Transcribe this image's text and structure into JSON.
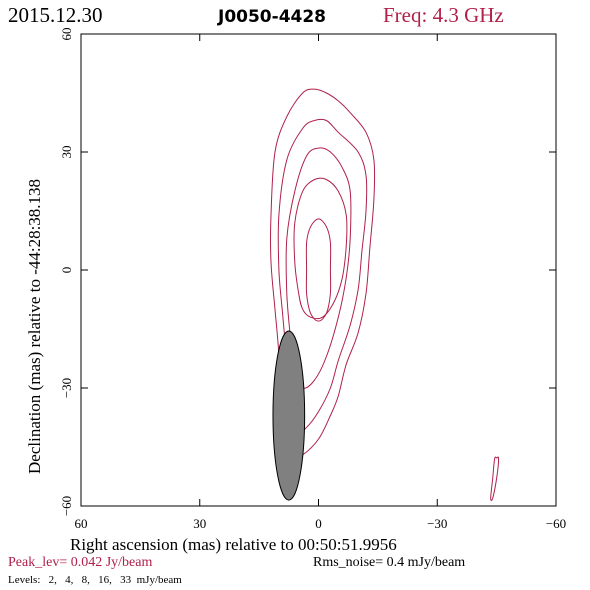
{
  "header": {
    "date": "2015.12.30",
    "source": "J0050-4428",
    "freq": "Freq: 4.3 GHz"
  },
  "footer": {
    "peak": "Peak_lev=  0.042 Jy/beam",
    "rms": "Rms_noise=  0.4 mJy/beam",
    "levels": "Levels:   2,   4,   8,   16,   33  mJy/beam"
  },
  "colors": {
    "contour": "#b0204a",
    "beam": "#808080",
    "text": "#000000"
  },
  "chart_data": {
    "type": "contour",
    "xlabel": "Right ascension (mas) relative to 00:50:51.9956",
    "ylabel": "Declination (mas) relative to -44:28:38.138",
    "xlim": [
      60,
      -60
    ],
    "ylim": [
      -60,
      60
    ],
    "xticks": [
      60,
      30,
      0,
      -30,
      -60
    ],
    "yticks": [
      -60,
      -30,
      0,
      30,
      60
    ],
    "levels_mJy": [
      2,
      4,
      8,
      16,
      33
    ],
    "contours": [
      {
        "level": 2,
        "points": [
          [
            7,
            -48
          ],
          [
            4,
            -47
          ],
          [
            0,
            -43
          ],
          [
            -3,
            -37
          ],
          [
            -5,
            -32
          ],
          [
            -7,
            -24
          ],
          [
            -10,
            -16
          ],
          [
            -12,
            -6
          ],
          [
            -13,
            6
          ],
          [
            -14,
            18
          ],
          [
            -14,
            28
          ],
          [
            -12,
            35
          ],
          [
            -8,
            40
          ],
          [
            -5,
            43
          ],
          [
            -2,
            45
          ],
          [
            1,
            46
          ],
          [
            4,
            45
          ],
          [
            8,
            39
          ],
          [
            11,
            30
          ],
          [
            12,
            14
          ],
          [
            12,
            2
          ],
          [
            11,
            -10
          ],
          [
            10,
            -22
          ],
          [
            10,
            -33
          ],
          [
            9,
            -42
          ]
        ]
      },
      {
        "level": 4,
        "points": [
          [
            6,
            -42
          ],
          [
            3,
            -40
          ],
          [
            0,
            -36
          ],
          [
            -3,
            -30
          ],
          [
            -5,
            -23
          ],
          [
            -8,
            -14
          ],
          [
            -10,
            -5
          ],
          [
            -11,
            5
          ],
          [
            -12,
            15
          ],
          [
            -12,
            24
          ],
          [
            -10,
            30
          ],
          [
            -5,
            35
          ],
          [
            -2,
            38
          ],
          [
            1,
            38
          ],
          [
            4,
            36
          ],
          [
            8,
            28
          ],
          [
            10,
            14
          ],
          [
            10,
            0
          ],
          [
            9,
            -12
          ],
          [
            8,
            -24
          ],
          [
            8,
            -34
          ]
        ]
      },
      {
        "level": 8,
        "points": [
          [
            4,
            -30
          ],
          [
            1,
            -28
          ],
          [
            -2,
            -22
          ],
          [
            -5,
            -12
          ],
          [
            -7,
            -2
          ],
          [
            -8,
            8
          ],
          [
            -8,
            20
          ],
          [
            -6,
            26
          ],
          [
            -3,
            30
          ],
          [
            0,
            31
          ],
          [
            3,
            29
          ],
          [
            6,
            20
          ],
          [
            8,
            8
          ],
          [
            8,
            -6
          ],
          [
            7,
            -18
          ],
          [
            6,
            -26
          ]
        ]
      },
      {
        "level": 16,
        "points": [
          [
            2,
            -12
          ],
          [
            -1,
            -12
          ],
          [
            -4,
            -8
          ],
          [
            -6,
            -2
          ],
          [
            -7,
            6
          ],
          [
            -7,
            14
          ],
          [
            -5,
            20
          ],
          [
            -2,
            23
          ],
          [
            1,
            23
          ],
          [
            4,
            20
          ],
          [
            6,
            12
          ],
          [
            6,
            2
          ],
          [
            5,
            -6
          ],
          [
            4,
            -10
          ]
        ]
      },
      {
        "level": 33,
        "points": [
          [
            0,
            -13
          ],
          [
            -2,
            -11
          ],
          [
            -3,
            -6
          ],
          [
            -3,
            0
          ],
          [
            -3,
            7
          ],
          [
            -2,
            11
          ],
          [
            0,
            13
          ],
          [
            2,
            11
          ],
          [
            3,
            7
          ],
          [
            3,
            0
          ],
          [
            3,
            -6
          ],
          [
            2,
            -11
          ]
        ]
      },
      {
        "level": 2,
        "points": [
          [
            -44,
            -58
          ],
          [
            -45,
            -53
          ],
          [
            -45.5,
            -48
          ],
          [
            -45,
            -47.8
          ],
          [
            -44.5,
            -48
          ],
          [
            -44,
            -53
          ],
          [
            -43.5,
            -58
          ]
        ]
      }
    ],
    "beam": {
      "center": [
        7.5,
        -37
      ],
      "major_mas": 43,
      "minor_mas": 8,
      "pa_deg": 0
    }
  }
}
